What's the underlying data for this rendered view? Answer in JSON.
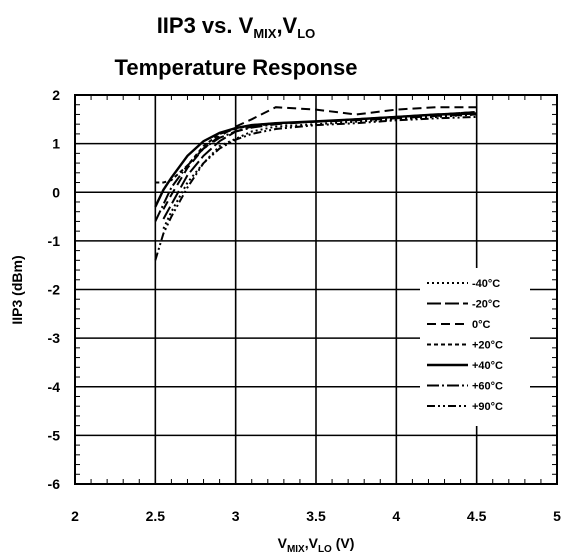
{
  "chart_data": {
    "type": "line",
    "title": {
      "line1": [
        {
          "text": "IIP3 vs. V",
          "sub": false
        },
        {
          "text": "MIX",
          "sub": true
        },
        {
          "text": ",V",
          "sub": false
        },
        {
          "text": "LO",
          "sub": true
        }
      ],
      "line2": "Temperature Response"
    },
    "xlabel": [
      {
        "text": "V",
        "sub": false
      },
      {
        "text": "MIX",
        "sub": true
      },
      {
        "text": ",V",
        "sub": false
      },
      {
        "text": "LO",
        "sub": true
      },
      {
        "text": " (V)",
        "sub": false
      }
    ],
    "ylabel": "IIP3 (dBm)",
    "xlim": [
      2,
      5
    ],
    "ylim": [
      -6,
      2
    ],
    "xticks": [
      2,
      2.5,
      3,
      3.5,
      4,
      4.5,
      5
    ],
    "xtick_labels": [
      "2",
      "2.5",
      "3",
      "3.5",
      "4",
      "4.5",
      "5"
    ],
    "yticks": [
      -6,
      -5,
      -4,
      -3,
      -2,
      -1,
      0,
      1,
      2
    ],
    "ytick_labels": [
      "-6",
      "-5",
      "-4",
      "-3",
      "-2",
      "-1",
      "0",
      "1",
      "2"
    ],
    "grid": true,
    "legend_position": "right-middle",
    "series": [
      {
        "name": "-40°C",
        "style": "dotted",
        "x": [
          2.55,
          2.6,
          2.7,
          2.8,
          2.9,
          3.0,
          3.1,
          3.25,
          3.5,
          3.75,
          4.0,
          4.25,
          4.5
        ],
        "y": [
          -0.75,
          -0.4,
          0.2,
          0.6,
          0.95,
          1.1,
          1.25,
          1.35,
          1.4,
          1.45,
          1.5,
          1.55,
          1.6
        ]
      },
      {
        "name": "-20°C",
        "style": "long-dash",
        "x": [
          2.55,
          2.6,
          2.7,
          2.8,
          2.9,
          3.0,
          3.1,
          3.25,
          3.5,
          3.75,
          4.0,
          4.25,
          4.5
        ],
        "y": [
          -0.55,
          -0.25,
          0.35,
          0.75,
          1.05,
          1.25,
          1.35,
          1.42,
          1.45,
          1.5,
          1.55,
          1.6,
          1.65
        ]
      },
      {
        "name": "0°C",
        "style": "dash",
        "x": [
          2.55,
          2.6,
          2.7,
          2.8,
          2.9,
          3.0,
          3.1,
          3.25,
          3.5,
          3.75,
          4.0,
          4.25,
          4.5
        ],
        "y": [
          -0.35,
          -0.05,
          0.5,
          0.9,
          1.15,
          1.35,
          1.5,
          1.75,
          1.7,
          1.6,
          1.7,
          1.75,
          1.75
        ]
      },
      {
        "name": "+20°C",
        "style": "short-dash",
        "x": [
          2.5,
          2.55,
          2.6,
          2.7,
          2.8,
          2.9,
          3.0,
          3.1,
          3.25,
          3.5,
          3.75,
          4.0,
          4.25,
          4.5
        ],
        "y": [
          0.2,
          0.2,
          0.25,
          0.55,
          0.95,
          1.2,
          1.3,
          1.38,
          1.42,
          1.45,
          1.5,
          1.55,
          1.6,
          1.65
        ]
      },
      {
        "name": "+40°C",
        "style": "solid",
        "x": [
          2.5,
          2.55,
          2.6,
          2.7,
          2.8,
          2.9,
          3.0,
          3.1,
          3.25,
          3.5,
          3.75,
          4.0,
          4.25,
          4.5
        ],
        "y": [
          -0.3,
          0.05,
          0.3,
          0.75,
          1.05,
          1.22,
          1.32,
          1.38,
          1.42,
          1.46,
          1.5,
          1.55,
          1.6,
          1.62
        ]
      },
      {
        "name": "+60°C",
        "style": "dash-dot",
        "x": [
          2.5,
          2.55,
          2.6,
          2.7,
          2.8,
          2.9,
          3.0,
          3.1,
          3.25,
          3.5,
          3.75,
          4.0,
          4.25,
          4.5
        ],
        "y": [
          -0.6,
          -0.25,
          0.1,
          0.55,
          0.9,
          1.12,
          1.25,
          1.33,
          1.4,
          1.45,
          1.48,
          1.52,
          1.57,
          1.6
        ]
      },
      {
        "name": "+90°C",
        "style": "dash-dot-dot",
        "x": [
          2.5,
          2.55,
          2.6,
          2.7,
          2.8,
          2.9,
          3.0,
          3.1,
          3.25,
          3.5,
          3.75,
          4.0,
          4.25,
          4.5
        ],
        "y": [
          -1.4,
          -0.85,
          -0.5,
          0.1,
          0.6,
          0.9,
          1.08,
          1.2,
          1.3,
          1.38,
          1.42,
          1.48,
          1.52,
          1.55
        ]
      }
    ]
  }
}
